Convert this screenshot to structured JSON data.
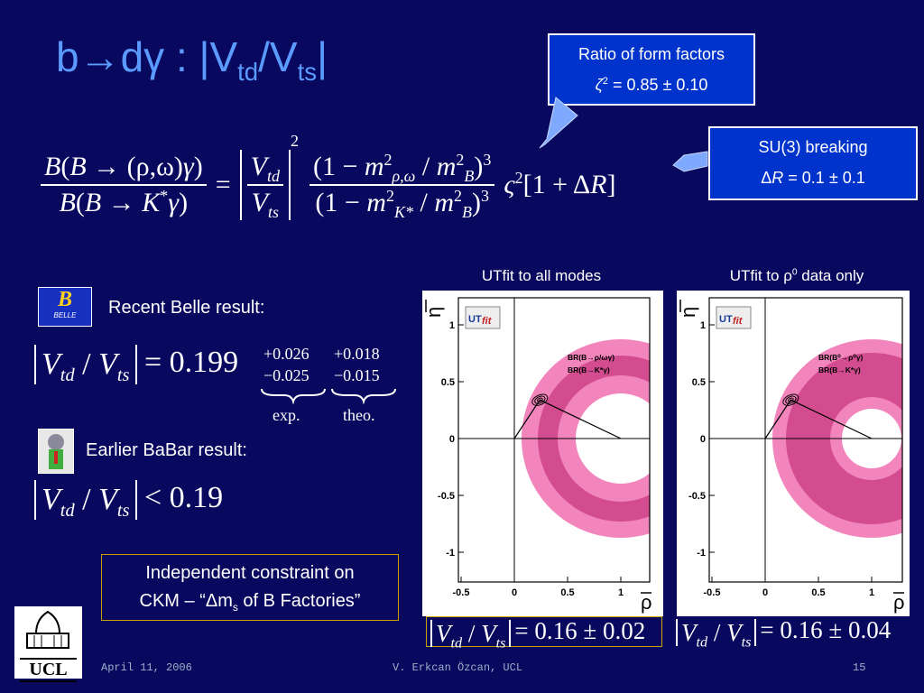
{
  "title": [
    {
      "t": "b→dγ : |V"
    },
    {
      "sub": "td"
    },
    {
      "t": "/V"
    },
    {
      "sub": "ts"
    },
    {
      "t": "|"
    }
  ],
  "form_factor_box": {
    "line1": [
      {
        "t": "Ratio of form factors"
      }
    ],
    "line2": [
      {
        "i": "ζ"
      },
      {
        "sup": "2"
      },
      {
        "t": " = 0.85 ± 0.10"
      }
    ]
  },
  "su3_box": {
    "line1": [
      {
        "t": "SU(3) breaking"
      }
    ],
    "line2": [
      {
        "t": "Δ"
      },
      {
        "i": "R"
      },
      {
        "t": " = 0.1 ± 0.1"
      }
    ]
  },
  "main_formula": {
    "lhs_num": [
      {
        "i": "B"
      },
      {
        "t": "("
      },
      {
        "i": "B"
      },
      {
        "t": " → (ρ,ω)"
      },
      {
        "i": "γ"
      },
      {
        "t": ")"
      }
    ],
    "lhs_den": [
      {
        "i": "B"
      },
      {
        "t": "("
      },
      {
        "i": "B"
      },
      {
        "t": " → "
      },
      {
        "i": "K"
      },
      {
        "sup": "*"
      },
      {
        "i": "γ"
      },
      {
        "t": ")"
      }
    ],
    "equals": "=",
    "ckm_num": [
      {
        "i": "V"
      },
      {
        "sub": "td"
      }
    ],
    "ckm_den": [
      {
        "i": "V"
      },
      {
        "sub": "ts"
      }
    ],
    "ckm_power": "2",
    "mass_num": [
      {
        "t": "(1 − "
      },
      {
        "i": "m"
      },
      {
        "sup": "2"
      },
      {
        "sub": "ρ,ω"
      },
      {
        "t": " / "
      },
      {
        "i": "m"
      },
      {
        "sup": "2"
      },
      {
        "sub": "B"
      },
      {
        "t": ")"
      },
      {
        "sup": "3"
      }
    ],
    "mass_den": [
      {
        "t": "(1 − "
      },
      {
        "i": "m"
      },
      {
        "sup": "2"
      },
      {
        "sub": "K*"
      },
      {
        "t": " / "
      },
      {
        "i": "m"
      },
      {
        "sup": "2"
      },
      {
        "sub": "B"
      },
      {
        "t": ")"
      },
      {
        "sup": "3"
      }
    ],
    "tail": [
      {
        "i": "ς"
      },
      {
        "sup": "2"
      },
      {
        "t": "[1 + Δ"
      },
      {
        "i": "R"
      },
      {
        "t": "]"
      }
    ]
  },
  "belle": {
    "logo": "BELLE",
    "label": "Recent Belle result:",
    "ratio": [
      {
        "i": "V"
      },
      {
        "sub": "td"
      },
      {
        "t": " / "
      },
      {
        "i": "V"
      },
      {
        "sub": "ts"
      }
    ],
    "value": "= 0.199",
    "exp_plus": "+0.026",
    "exp_minus": "−0.025",
    "theo_plus": "+0.018",
    "theo_minus": "−0.015",
    "exp_label": "exp.",
    "theo_label": "theo."
  },
  "babar": {
    "label": "Earlier BaBar result:",
    "ratio": [
      {
        "i": "V"
      },
      {
        "sub": "td"
      },
      {
        "t": " / "
      },
      {
        "i": "V"
      },
      {
        "sub": "ts"
      }
    ],
    "value": "< 0.19"
  },
  "constraint_box": {
    "line1": [
      {
        "t": "Independent constraint on"
      }
    ],
    "line2": [
      {
        "t": "CKM – “Δm"
      },
      {
        "sub": "s"
      },
      {
        "t": " of B Factories”"
      }
    ]
  },
  "plots": [
    {
      "header": [
        {
          "t": "UTfit to all modes"
        }
      ],
      "y_label": "η",
      "x_label": "ρ",
      "yticks": [
        1,
        0.5,
        0,
        -0.5,
        -1
      ],
      "xticks": [
        -0.5,
        0,
        0.5,
        1
      ],
      "legend": [
        "BR(B→ρ/ωγ)",
        "BR(B→K*γ)"
      ],
      "logo": {
        "ut": "UT",
        "fit": "fit"
      },
      "result_ratio": [
        {
          "i": "V"
        },
        {
          "sub": "td"
        },
        {
          "t": " / "
        },
        {
          "i": "V"
        },
        {
          "sub": "ts"
        }
      ],
      "result_value": "= 0.16 ± 0.02"
    },
    {
      "header": [
        {
          "t": "UTfit to ρ"
        },
        {
          "sup": "0"
        },
        {
          "t": " data only"
        }
      ],
      "y_label": "η",
      "x_label": "ρ",
      "yticks": [
        1,
        0.5,
        0,
        -0.5,
        -1
      ],
      "xticks": [
        -0.5,
        0,
        0.5,
        1
      ],
      "legend": [
        "BR(B⁰→ρ⁰γ)",
        "BR(B→K*γ)"
      ],
      "logo": {
        "ut": "UT",
        "fit": "fit"
      },
      "result_ratio": [
        {
          "i": "V"
        },
        {
          "sub": "td"
        },
        {
          "t": " / "
        },
        {
          "i": "V"
        },
        {
          "sub": "ts"
        }
      ],
      "result_value": "= 0.16 ± 0.04"
    }
  ],
  "ucl_logo": "UCL",
  "footer": {
    "date": "April 11, 2006",
    "author": "V. Erkcan Özcan, UCL",
    "page": "15"
  }
}
